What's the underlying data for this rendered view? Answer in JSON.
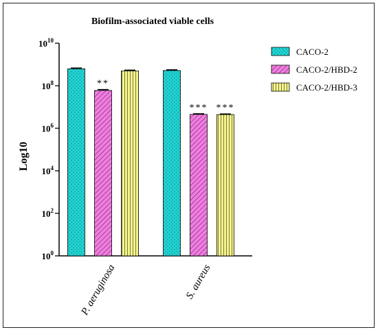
{
  "chart_data": {
    "type": "bar",
    "title": "Biofilm-associated viable cells",
    "ylabel": "Log10",
    "xlabel": "",
    "yscale": "log",
    "ylim": [
      1,
      10000000000
    ],
    "yticks": [
      {
        "value": 1,
        "base": "10",
        "exp": "0"
      },
      {
        "value": 100,
        "base": "10",
        "exp": "2"
      },
      {
        "value": 10000,
        "base": "10",
        "exp": "4"
      },
      {
        "value": 1000000,
        "base": "10",
        "exp": "6"
      },
      {
        "value": 100000000,
        "base": "10",
        "exp": "8"
      },
      {
        "value": 10000000000,
        "base": "10",
        "exp": "10"
      }
    ],
    "categories": [
      "P. aeruginosa",
      "S. aureus"
    ],
    "series": [
      {
        "name": "CACO-2",
        "values": [
          630000000,
          520000000
        ],
        "errors": [
          50000000,
          40000000
        ],
        "annotations": [
          "",
          ""
        ]
      },
      {
        "name": "CACO-2/HBD-2",
        "values": [
          60000000,
          4500000
        ],
        "errors": [
          6000000,
          300000
        ],
        "annotations": [
          "**",
          "***"
        ]
      },
      {
        "name": "CACO-2/HBD-3",
        "values": [
          500000000,
          4400000
        ],
        "errors": [
          40000000,
          300000
        ],
        "annotations": [
          "",
          "***"
        ]
      }
    ],
    "legend_position": "top-right",
    "colors": {
      "CACO-2": "#22d4d4",
      "CACO-2/HBD-2": "#f07ee0",
      "CACO-2/HBD-3": "#f5f590"
    }
  }
}
